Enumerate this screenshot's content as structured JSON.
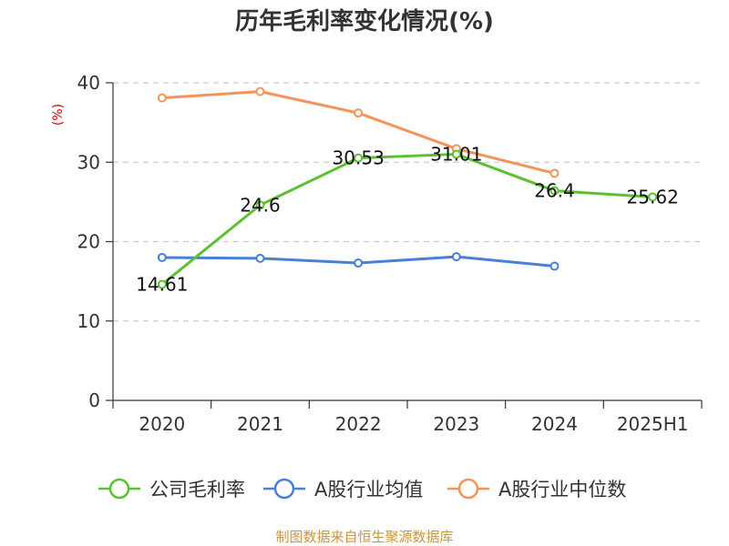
{
  "chart_data": {
    "type": "line",
    "title": "历年毛利率变化情况(%)",
    "ylabel": "(%)",
    "xlabel": "",
    "categories": [
      "2020",
      "2021",
      "2022",
      "2023",
      "2024",
      "2025H1"
    ],
    "ylim": [
      0,
      40
    ],
    "yticks": [
      0,
      10,
      20,
      30,
      40
    ],
    "grid": true,
    "legend_position": "bottom",
    "series": [
      {
        "name": "公司毛利率",
        "color": "#5cc130",
        "values": [
          14.61,
          24.6,
          30.53,
          31.01,
          26.4,
          25.62
        ],
        "labels": [
          "14.61",
          "24.6",
          "30.53",
          "31.01",
          "26.4",
          "25.62"
        ]
      },
      {
        "name": "A股行业均值",
        "color": "#4a7fd6",
        "values": [
          18.0,
          17.9,
          17.3,
          18.1,
          16.9,
          null
        ],
        "labels": null
      },
      {
        "name": "A股行业中位数",
        "color": "#f4945a",
        "values": [
          38.1,
          38.9,
          36.2,
          31.7,
          28.6,
          null
        ],
        "labels": null
      }
    ]
  },
  "source": "制图数据来自恒生聚源数据库",
  "colors": {
    "axis": "#333333",
    "grid": "#cccccc",
    "ylabel": "#d40000",
    "source": "#c8963c"
  }
}
